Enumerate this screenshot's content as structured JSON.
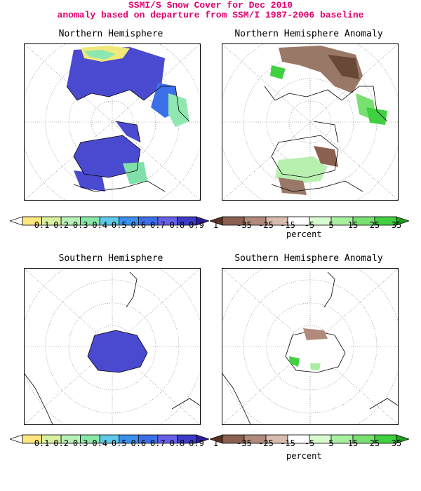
{
  "title": {
    "line1": "SSMI/S Snow Cover for Dec 2010",
    "line2": "anomaly based on departure from SSM/I 1987-2006 baseline"
  },
  "panels": {
    "nh": {
      "title": "Northern Hemisphere"
    },
    "nh_anom": {
      "title": "Northern Hemisphere Anomaly"
    },
    "sh": {
      "title": "Southern Hemisphere"
    },
    "sh_anom": {
      "title": "Southern Hemisphere Anomaly"
    }
  },
  "colorbars": {
    "fraction": {
      "labels": [
        "0.1",
        "0.2",
        "0.3",
        "0.4",
        "0.5",
        "0.6",
        "0.7",
        "0.8",
        "0.9",
        "1"
      ],
      "colors": [
        "#ffffff",
        "#ffe680",
        "#d8f0a0",
        "#b8f0b8",
        "#88e8a8",
        "#60c8e8",
        "#3c90f0",
        "#3c70e8",
        "#6a60e8",
        "#3c3cc8",
        "#2c1c9c"
      ]
    },
    "anomaly": {
      "labels": [
        "-35",
        "-25",
        "-15",
        "-5",
        "5",
        "15",
        "25",
        "35"
      ],
      "unit": "percent",
      "colors": [
        "#5a3220",
        "#8a6050",
        "#b08a7a",
        "#d8bcb0",
        "#ffffff",
        "#d8fcd0",
        "#a8f0a0",
        "#78e070",
        "#40d040",
        "#20a020"
      ]
    }
  },
  "colors": {
    "title": "#e0006e",
    "snow": "#4a4ad0",
    "snow_light": "#6fd8a0",
    "decrease": "#8a6a5a",
    "increase": "#40d040"
  }
}
